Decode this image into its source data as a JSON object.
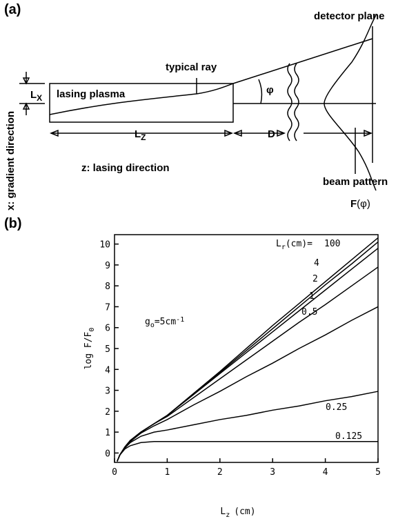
{
  "panel_a": {
    "label": "(a)",
    "detector_plane": "detector plane",
    "typical_ray": "typical ray",
    "lx_main": "L",
    "lx_sub": "X",
    "plasma": "lasing plasma",
    "phi": "φ",
    "gradient": "x: gradient direction",
    "lz_main": "L",
    "lz_sub": "Z",
    "d": "D",
    "lasing_direction": "z: lasing direction",
    "beam_pattern": "beam pattern",
    "f_main": "F",
    "f_arg": "(φ)"
  },
  "panel_b_label": "(b)",
  "chart_data": {
    "type": "line",
    "x_label": "L",
    "x_label_sub": "z",
    "x_label_suffix": "(cm)",
    "y_label": "log F/F",
    "y_label_sub": "0",
    "annotation": "g",
    "annotation_sub": "o",
    "annotation_mid": "=5cm",
    "annotation_sup": "-1",
    "series_title": "L",
    "series_title_sub": "r",
    "series_title_suffix": "(cm)=",
    "x": [
      0.05,
      0.1,
      0.2,
      0.3,
      0.5,
      0.75,
      1,
      1.5,
      2,
      2.5,
      3,
      3.5,
      4,
      4.5,
      5
    ],
    "series": [
      {
        "name": "100",
        "color": "#000000",
        "values": [
          -0.4,
          -0.1,
          0.3,
          0.6,
          1.0,
          1.4,
          1.8,
          2.85,
          3.9,
          5.0,
          6.1,
          7.15,
          8.2,
          9.25,
          10.3
        ]
      },
      {
        "name": "4",
        "color": "#000000",
        "values": [
          -0.4,
          -0.1,
          0.3,
          0.6,
          1.0,
          1.4,
          1.8,
          2.8,
          3.85,
          4.9,
          5.95,
          7.0,
          8.05,
          9.05,
          10.1
        ]
      },
      {
        "name": "2",
        "color": "#000000",
        "values": [
          -0.4,
          -0.1,
          0.3,
          0.6,
          1.0,
          1.4,
          1.8,
          2.8,
          3.8,
          4.8,
          5.8,
          6.8,
          7.8,
          8.8,
          9.8
        ]
      },
      {
        "name": "1",
        "color": "#000000",
        "values": [
          -0.4,
          -0.1,
          0.3,
          0.6,
          1.0,
          1.4,
          1.75,
          2.65,
          3.55,
          4.45,
          5.35,
          6.25,
          7.1,
          8.0,
          8.9
        ]
      },
      {
        "name": "0.5",
        "color": "#000000",
        "values": [
          -0.4,
          -0.1,
          0.3,
          0.55,
          0.95,
          1.3,
          1.6,
          2.3,
          2.95,
          3.65,
          4.3,
          5.0,
          5.65,
          6.35,
          7.0
        ]
      },
      {
        "name": "0.25",
        "color": "#000000",
        "values": [
          -0.4,
          -0.1,
          0.25,
          0.5,
          0.8,
          1.0,
          1.1,
          1.35,
          1.6,
          1.8,
          2.05,
          2.25,
          2.5,
          2.7,
          2.95
        ]
      },
      {
        "name": "0.125",
        "color": "#000000",
        "values": [
          -0.4,
          -0.1,
          0.2,
          0.35,
          0.5,
          0.55,
          0.55,
          0.55,
          0.55,
          0.55,
          0.55,
          0.55,
          0.55,
          0.55,
          0.55
        ]
      }
    ],
    "xlim": [
      0,
      5
    ],
    "xticks": [
      0,
      1,
      2,
      3,
      4,
      5
    ],
    "ylim": [
      -0.45,
      10.45
    ],
    "yticks": [
      0,
      1,
      2,
      3,
      4,
      5,
      6,
      7,
      8,
      9,
      10
    ]
  }
}
